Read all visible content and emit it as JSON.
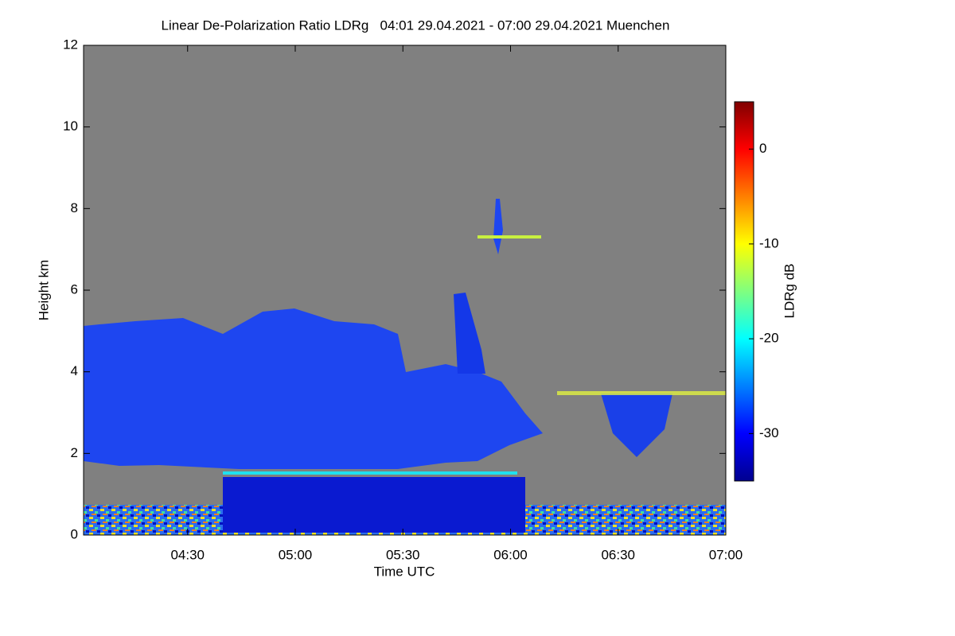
{
  "chart_data": {
    "type": "heatmap",
    "title": "Linear De-Polarization Ratio LDRg   04:01 29.04.2021 - 07:00 29.04.2021 Muenchen",
    "x_label": "Time UTC",
    "y_label": "Height km",
    "xlim": [
      241,
      420
    ],
    "xticks": [
      {
        "value": 270,
        "label": "04:30"
      },
      {
        "value": 300,
        "label": "05:00"
      },
      {
        "value": 330,
        "label": "05:30"
      },
      {
        "value": 360,
        "label": "06:00"
      },
      {
        "value": 390,
        "label": "06:30"
      },
      {
        "value": 420,
        "label": "07:00"
      }
    ],
    "ylim": [
      0,
      12
    ],
    "yticks": [
      0,
      2,
      4,
      6,
      8,
      10,
      12
    ],
    "background_color": "#808080",
    "colormap": "jet",
    "colorbar": {
      "label": "LDRg dB",
      "lim": [
        -35,
        5
      ],
      "ticks": [
        0,
        -10,
        -20,
        -30
      ]
    }
  }
}
